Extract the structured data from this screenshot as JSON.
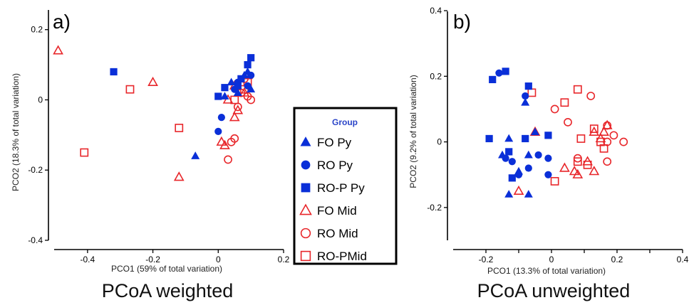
{
  "colors": {
    "py": "#0a2fd8",
    "mid": "#e8262a",
    "legend_title": "#2b45c8"
  },
  "legend": {
    "title": "Group",
    "entries": [
      {
        "key": "FO_Py",
        "label": "FO Py",
        "marker": "triangle",
        "color": "#0a2fd8",
        "filled": true
      },
      {
        "key": "RO_Py",
        "label": "RO Py",
        "marker": "circle",
        "color": "#0a2fd8",
        "filled": true
      },
      {
        "key": "ROP_Py",
        "label": "RO-P Py",
        "marker": "square",
        "color": "#0a2fd8",
        "filled": true
      },
      {
        "key": "FO_Mid",
        "label": "FO Mid",
        "marker": "triangle",
        "color": "#e8262a",
        "filled": false
      },
      {
        "key": "RO_Mid",
        "label": "RO Mid",
        "marker": "circle",
        "color": "#e8262a",
        "filled": false
      },
      {
        "key": "ROP_Mid",
        "label": "RO-PMid",
        "marker": "square",
        "color": "#e8262a",
        "filled": false
      }
    ]
  },
  "chart_data": [
    {
      "type": "scatter",
      "panel_label": "a)",
      "caption": "PCoA weighted",
      "xlabel": "PCO1 (59% of total variation)",
      "ylabel": "PCO2 (18.3% of total variation)",
      "xlim": [
        -0.5,
        0.2
      ],
      "ylim": [
        -0.4,
        0.25
      ],
      "xticks": [
        -0.4,
        -0.2,
        0,
        0.2
      ],
      "xtick_labels": [
        "-0.4",
        "-0.2",
        "0",
        "0.2"
      ],
      "yticks": [
        -0.4,
        -0.2,
        0,
        0.2
      ],
      "ytick_labels": [
        "-0.4",
        "-0.2",
        "0",
        "0.2"
      ],
      "series": [
        {
          "key": "FO_Py",
          "points": [
            [
              -0.07,
              -0.16
            ],
            [
              0.02,
              0.01
            ],
            [
              0.04,
              0.05
            ],
            [
              0.08,
              0.07
            ],
            [
              0.09,
              0.08
            ],
            [
              0.1,
              0.03
            ],
            [
              0.06,
              0.02
            ]
          ]
        },
        {
          "key": "RO_Py",
          "points": [
            [
              0,
              -0.09
            ],
            [
              0.01,
              -0.05
            ],
            [
              0.05,
              0.03
            ],
            [
              0.09,
              0.04
            ],
            [
              0.1,
              0.07
            ],
            [
              0.06,
              0.05
            ]
          ]
        },
        {
          "key": "ROP_Py",
          "points": [
            [
              -0.32,
              0.08
            ],
            [
              0,
              0.01
            ],
            [
              0.02,
              0.035
            ],
            [
              0.06,
              0.04
            ],
            [
              0.1,
              0.12
            ],
            [
              0.09,
              0.1
            ],
            [
              0.07,
              0.06
            ]
          ]
        },
        {
          "key": "FO_Mid",
          "points": [
            [
              -0.49,
              0.14
            ],
            [
              -0.2,
              0.05
            ],
            [
              -0.12,
              -0.22
            ],
            [
              0.01,
              -0.12
            ],
            [
              0.02,
              -0.13
            ],
            [
              0.05,
              -0.05
            ],
            [
              0.06,
              -0.03
            ],
            [
              0.05,
              0.04
            ],
            [
              0.09,
              0.07
            ],
            [
              0.08,
              0.02
            ],
            [
              0.03,
              0
            ]
          ]
        },
        {
          "key": "RO_Mid",
          "points": [
            [
              0.03,
              -0.17
            ],
            [
              0.04,
              -0.12
            ],
            [
              0.05,
              -0.11
            ],
            [
              0.07,
              0.02
            ],
            [
              0.09,
              0.01
            ],
            [
              0.1,
              0
            ],
            [
              0.08,
              0.06
            ],
            [
              0.06,
              -0.02
            ]
          ]
        },
        {
          "key": "ROP_Mid",
          "points": [
            [
              -0.41,
              -0.15
            ],
            [
              -0.27,
              0.03
            ],
            [
              -0.12,
              -0.08
            ],
            [
              0.05,
              0
            ],
            [
              0.08,
              0.03
            ],
            [
              0.09,
              0.05
            ]
          ]
        }
      ]
    },
    {
      "type": "scatter",
      "panel_label": "b)",
      "caption": "PCoA unweighted",
      "xlabel": "PCO1 (13.3% of total variation)",
      "ylabel": "PCO2 (9.2% of total variation)",
      "xlim": [
        -0.3,
        0.4
      ],
      "ylim": [
        -0.3,
        0.4
      ],
      "xticks": [
        -0.2,
        -0.1,
        0,
        0.1,
        0.2,
        0.3,
        0.4
      ],
      "xtick_labels": [
        "-0.2",
        "",
        "0",
        "",
        "0.2",
        "",
        "0.4"
      ],
      "yticks": [
        -0.2,
        0,
        0.2,
        0.4
      ],
      "ytick_labels": [
        "-0.2",
        "0",
        "0.2",
        "0.4"
      ],
      "series": [
        {
          "key": "FO_Py",
          "points": [
            [
              -0.13,
              -0.16
            ],
            [
              -0.07,
              -0.16
            ],
            [
              -0.13,
              0.01
            ],
            [
              -0.08,
              0.12
            ],
            [
              -0.15,
              -0.04
            ],
            [
              -0.07,
              -0.04
            ],
            [
              -0.1,
              -0.09
            ],
            [
              -0.05,
              0.03
            ]
          ]
        },
        {
          "key": "RO_Py",
          "points": [
            [
              -0.16,
              0.21
            ],
            [
              -0.08,
              0.14
            ],
            [
              -0.14,
              -0.05
            ],
            [
              -0.12,
              -0.06
            ],
            [
              -0.07,
              -0.08
            ],
            [
              -0.04,
              -0.04
            ],
            [
              -0.1,
              -0.1
            ],
            [
              -0.01,
              -0.05
            ],
            [
              -0.01,
              -0.1
            ]
          ]
        },
        {
          "key": "ROP_Py",
          "points": [
            [
              -0.18,
              0.19
            ],
            [
              -0.14,
              0.215
            ],
            [
              -0.07,
              0.17
            ],
            [
              -0.19,
              0.01
            ],
            [
              -0.08,
              0.01
            ],
            [
              -0.01,
              0.02
            ],
            [
              -0.13,
              -0.03
            ],
            [
              -0.12,
              -0.11
            ]
          ]
        },
        {
          "key": "FO_Mid",
          "points": [
            [
              -0.1,
              -0.15
            ],
            [
              -0.05,
              0.03
            ],
            [
              0.04,
              -0.08
            ],
            [
              0.07,
              -0.09
            ],
            [
              0.08,
              -0.1
            ],
            [
              0.11,
              -0.06
            ],
            [
              0.13,
              -0.09
            ],
            [
              0.13,
              0.03
            ],
            [
              0.15,
              0.01
            ],
            [
              0.16,
              0.03
            ],
            [
              0.17,
              0.05
            ]
          ]
        },
        {
          "key": "RO_Mid",
          "points": [
            [
              0.01,
              0.1
            ],
            [
              0.05,
              0.06
            ],
            [
              0.08,
              -0.05
            ],
            [
              0.12,
              0.14
            ],
            [
              0.17,
              0.05
            ],
            [
              0.17,
              0
            ],
            [
              0.19,
              0.02
            ],
            [
              0.22,
              0
            ],
            [
              0.17,
              -0.06
            ]
          ]
        },
        {
          "key": "ROP_Mid",
          "points": [
            [
              -0.06,
              0.15
            ],
            [
              0.04,
              0.12
            ],
            [
              0.08,
              0.16
            ],
            [
              0.01,
              -0.12
            ],
            [
              0.11,
              -0.07
            ],
            [
              0.15,
              0
            ],
            [
              0.16,
              -0.02
            ],
            [
              0.13,
              0.04
            ],
            [
              0.09,
              0.01
            ],
            [
              0.08,
              -0.06
            ]
          ]
        }
      ]
    }
  ]
}
